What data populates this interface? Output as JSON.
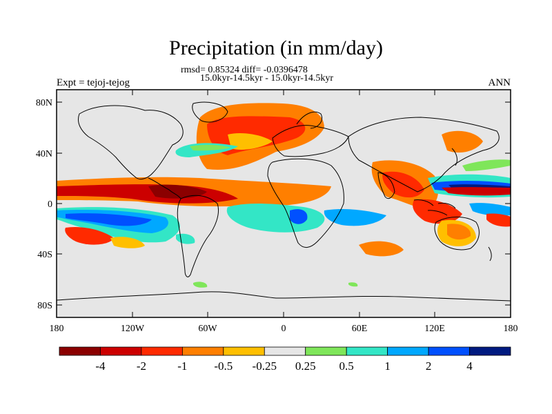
{
  "title": "Precipitation (in mm/day)",
  "stats_line1": "rmsd= 0.85324 diff= -0.0396478",
  "stats_line2": "15.0kyr-14.5kyr - 15.0kyr-14.5kyr",
  "experiment": "Expt = tejoj-tejog",
  "season": "ANN",
  "lat_ticks": [
    "80N",
    "40N",
    "0",
    "40S",
    "80S"
  ],
  "lon_ticks": [
    "180",
    "120W",
    "60W",
    "0",
    "60E",
    "120E",
    "180"
  ],
  "colorbar": {
    "colors": [
      "#8b0000",
      "#cc0000",
      "#ff2a00",
      "#ff7f00",
      "#ffbf00",
      "#e6e6e6",
      "#7fe65a",
      "#33e6c6",
      "#00a8ff",
      "#0050ff",
      "#001a80"
    ],
    "labels": [
      "-4",
      "-2",
      "-1",
      "-0.5",
      "-0.25",
      "0.25",
      "0.5",
      "1",
      "2",
      "4"
    ]
  },
  "colors": {
    "background_field": "#e6e6e6",
    "coastline": "#000000"
  }
}
